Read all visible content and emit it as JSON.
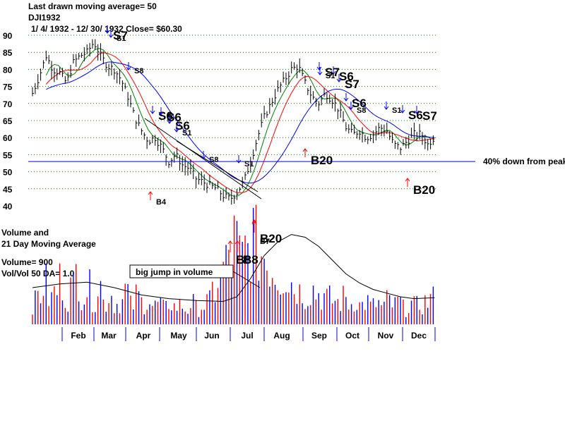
{
  "header": {
    "line1": "Last drawn moving average= 50",
    "line2": "DJI1932",
    "line3": "1/ 4/ 1932 - 12/ 30/ 1932   Close= $60.30"
  },
  "volume_panel": {
    "title1": "Volume and",
    "title2": "21 Day Moving Average",
    "vol_text": "Volume= 900",
    "ratio_text": "Vol/Vol 50 DA= 1.0",
    "callout": "big jump in volume"
  },
  "annotation_40pct": "40% down from peak",
  "colors": {
    "price": "#000000",
    "ma_green": "#008000",
    "ma_red": "#ff0000",
    "ma_blue": "#0000ff",
    "grid": "#008000",
    "sell": "#0000ff",
    "buy": "#ff0000"
  },
  "chart_data": [
    {
      "type": "line",
      "title": "DJI1932",
      "y_ticks": [
        "90",
        "85",
        "80",
        "75",
        "70",
        "65",
        "60",
        "55",
        "50",
        "45",
        "40"
      ],
      "ylim": [
        40,
        90
      ],
      "x_months": [
        "Feb",
        "Mar",
        "Apr",
        "May",
        "Jun",
        "Jul",
        "Aug",
        "Sep",
        "Oct",
        "Nov",
        "Dec"
      ],
      "series": [
        {
          "name": "Close",
          "x": [
            0,
            5,
            10,
            15,
            20,
            25,
            30,
            35,
            40,
            45,
            50,
            55,
            60,
            65,
            70,
            75,
            80,
            85,
            90,
            95,
            100,
            105,
            110,
            115,
            120,
            125,
            130,
            135,
            140,
            145,
            150,
            155,
            160,
            165,
            170,
            175,
            180,
            185,
            190,
            195,
            200,
            205,
            210,
            215,
            220,
            225,
            230,
            235,
            240,
            245,
            250,
            255,
            260,
            265,
            270,
            275,
            280,
            285,
            290,
            295
          ],
          "values": [
            73,
            78,
            84,
            80,
            79,
            76,
            82,
            84,
            85,
            88,
            84,
            81,
            80,
            77,
            72,
            66,
            62,
            59,
            60,
            57,
            53,
            55,
            52,
            51,
            48,
            47,
            46,
            45,
            43,
            42,
            44,
            47,
            53,
            60,
            66,
            70,
            74,
            77,
            80,
            81,
            76,
            72,
            70,
            73,
            71,
            68,
            63,
            61,
            62,
            60,
            61,
            63,
            62,
            58,
            57,
            59,
            61,
            61,
            58,
            60.3
          ]
        }
      ],
      "horizontal_line": {
        "value": 53,
        "label": "40% down from peak"
      },
      "signals": [
        {
          "label": "S7",
          "type": "sell"
        },
        {
          "label": "S1",
          "type": "sell"
        },
        {
          "label": "S8",
          "type": "sell"
        },
        {
          "label": "S6",
          "type": "sell"
        },
        {
          "label": "S6",
          "type": "sell"
        },
        {
          "label": "S6",
          "type": "sell"
        },
        {
          "label": "S1",
          "type": "sell"
        },
        {
          "label": "S8",
          "type": "sell"
        },
        {
          "label": "S1",
          "type": "sell"
        },
        {
          "label": "B4",
          "type": "buy"
        },
        {
          "label": "S7",
          "type": "sell"
        },
        {
          "label": "S6",
          "type": "sell"
        },
        {
          "label": "S1",
          "type": "sell"
        },
        {
          "label": "S7",
          "type": "sell"
        },
        {
          "label": "S6",
          "type": "sell"
        },
        {
          "label": "S8",
          "type": "sell"
        },
        {
          "label": "S1",
          "type": "sell"
        },
        {
          "label": "S6",
          "type": "sell"
        },
        {
          "label": "S7",
          "type": "sell"
        },
        {
          "label": "B20",
          "type": "buy"
        },
        {
          "label": "B20",
          "type": "buy"
        }
      ]
    },
    {
      "type": "bar",
      "title": "Volume and 21 Day Moving Average",
      "series": [
        {
          "name": "Volume",
          "x": [
            0,
            4,
            8,
            12,
            16,
            20,
            24,
            28,
            32,
            36,
            40,
            44,
            48,
            52,
            56,
            60,
            64,
            68,
            72,
            76,
            80,
            84,
            88,
            92,
            96,
            100,
            104,
            108,
            112,
            116,
            120,
            124,
            128,
            132,
            136,
            140,
            144,
            148,
            152,
            156,
            160,
            164,
            168,
            172,
            176,
            180,
            184,
            188,
            192,
            196,
            200,
            204,
            208,
            212,
            216,
            220,
            224,
            228,
            232,
            236,
            240,
            244,
            248,
            252,
            256,
            260,
            264,
            268,
            272,
            276,
            280,
            284,
            288,
            292
          ],
          "values": [
            30,
            40,
            55,
            35,
            45,
            60,
            38,
            50,
            70,
            42,
            48,
            36,
            55,
            30,
            40,
            28,
            32,
            45,
            26,
            38,
            30,
            34,
            25,
            28,
            22,
            30,
            24,
            26,
            20,
            28,
            22,
            25,
            30,
            45,
            60,
            80,
            95,
            110,
            88,
            100,
            120,
            105,
            96,
            85,
            75,
            65,
            70,
            58,
            50,
            45,
            40,
            48,
            42,
            38,
            35,
            32,
            30,
            36,
            28,
            34,
            26,
            30,
            25,
            28,
            24,
            32,
            26,
            30,
            22,
            28,
            25,
            27,
            30,
            35
          ],
          "colors": [
            "red",
            "blue"
          ]
        },
        {
          "name": "21 Day MA",
          "x": [
            0,
            20,
            40,
            60,
            80,
            100,
            120,
            140,
            150,
            160,
            170,
            180,
            190,
            200,
            210,
            220,
            230,
            240,
            250,
            260,
            270,
            280,
            295
          ],
          "values": [
            40,
            44,
            46,
            40,
            32,
            28,
            26,
            25,
            30,
            50,
            75,
            90,
            98,
            95,
            85,
            70,
            55,
            45,
            38,
            34,
            30,
            28,
            29
          ]
        }
      ],
      "volume_signals": [
        "B8",
        "B8",
        "B7",
        "B20"
      ]
    }
  ]
}
